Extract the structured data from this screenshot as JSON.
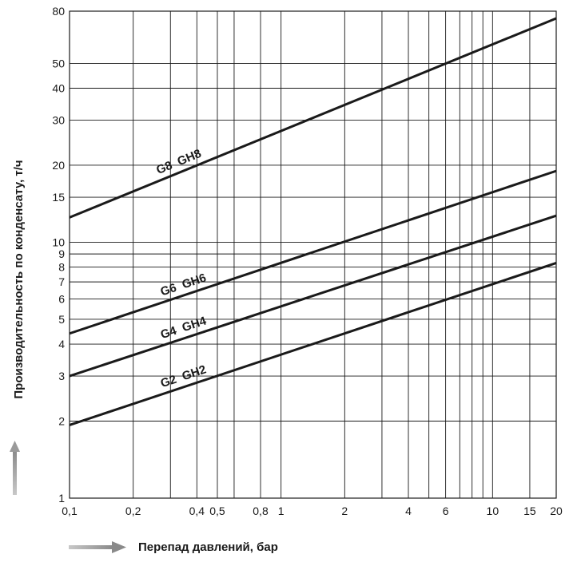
{
  "chart_data": {
    "type": "line",
    "x_scale": "log",
    "y_scale": "log",
    "xlabel": "Перепад давлений, бар",
    "ylabel": "Производительность по конденсату, т/ч",
    "xlim": [
      0.1,
      20
    ],
    "ylim": [
      1,
      80
    ],
    "grid": true,
    "x_ticks": [
      {
        "value": 0.1,
        "label": "0,1"
      },
      {
        "value": 0.2,
        "label": "0,2"
      },
      {
        "value": 0.4,
        "label": "0,4"
      },
      {
        "value": 0.5,
        "label": "0,5"
      },
      {
        "value": 0.8,
        "label": "0,8"
      },
      {
        "value": 1,
        "label": "1"
      },
      {
        "value": 2,
        "label": "2"
      },
      {
        "value": 4,
        "label": "4"
      },
      {
        "value": 6,
        "label": "6"
      },
      {
        "value": 10,
        "label": "10"
      },
      {
        "value": 15,
        "label": "15"
      },
      {
        "value": 20,
        "label": "20"
      }
    ],
    "x_gridlines": [
      0.2,
      0.3,
      0.4,
      0.5,
      0.6,
      0.8,
      1,
      2,
      3,
      4,
      5,
      6,
      7,
      8,
      9,
      10,
      15,
      20
    ],
    "y_ticks": [
      {
        "value": 1,
        "label": "1"
      },
      {
        "value": 2,
        "label": "2"
      },
      {
        "value": 3,
        "label": "3"
      },
      {
        "value": 4,
        "label": "4"
      },
      {
        "value": 5,
        "label": "5"
      },
      {
        "value": 6,
        "label": "6"
      },
      {
        "value": 7,
        "label": "7"
      },
      {
        "value": 8,
        "label": "8"
      },
      {
        "value": 9,
        "label": "9"
      },
      {
        "value": 10,
        "label": "10"
      },
      {
        "value": 15,
        "label": "15"
      },
      {
        "value": 20,
        "label": "20"
      },
      {
        "value": 30,
        "label": "30"
      },
      {
        "value": 40,
        "label": "40"
      },
      {
        "value": 50,
        "label": "50"
      },
      {
        "value": 80,
        "label": "80"
      }
    ],
    "y_gridlines": [
      2,
      3,
      4,
      5,
      6,
      7,
      8,
      9,
      10,
      15,
      20,
      30,
      40,
      50,
      80
    ],
    "series": [
      {
        "name": "G8 GH8",
        "x": [
          0.1,
          20
        ],
        "y": [
          12.5,
          75
        ],
        "label_at": 0.27
      },
      {
        "name": "G6 GH6",
        "x": [
          0.1,
          20
        ],
        "y": [
          4.4,
          19
        ],
        "label_at": 0.28
      },
      {
        "name": "G4 GH4",
        "x": [
          0.1,
          20
        ],
        "y": [
          3.0,
          12.7
        ],
        "label_at": 0.28
      },
      {
        "name": "G2 GH2",
        "x": [
          0.1,
          20
        ],
        "y": [
          1.93,
          8.3
        ],
        "label_at": 0.28
      }
    ]
  }
}
